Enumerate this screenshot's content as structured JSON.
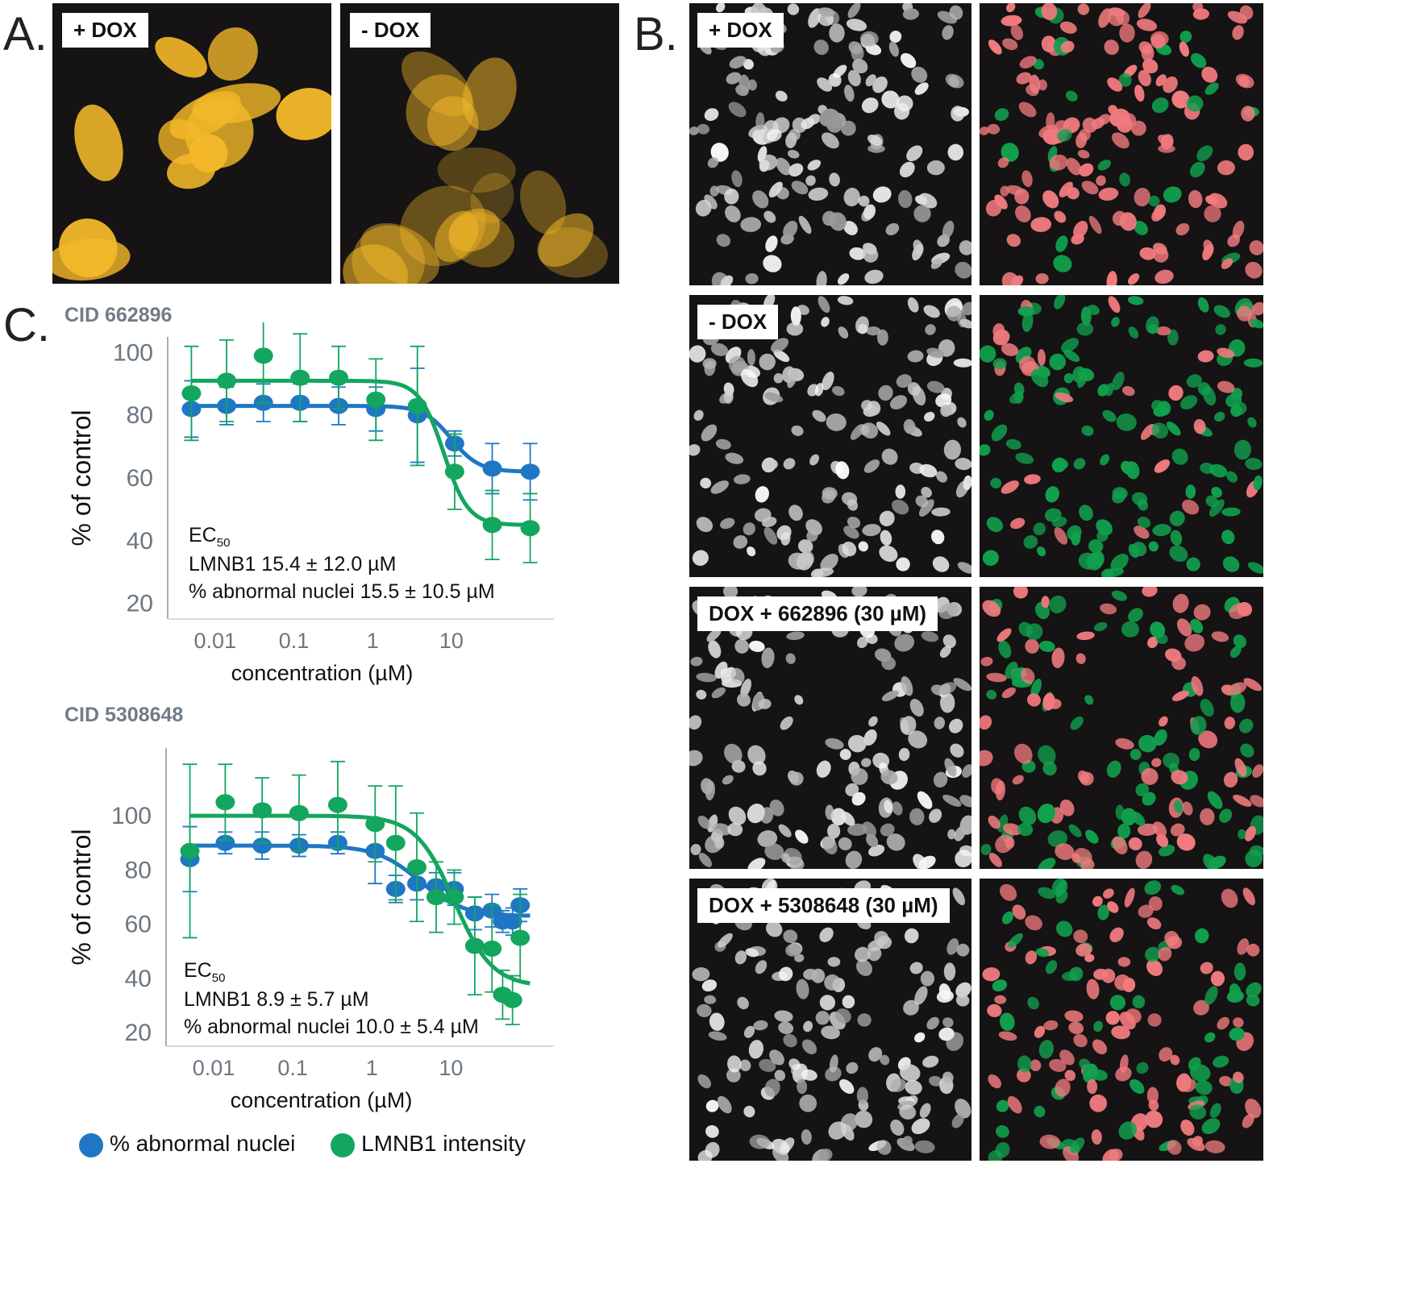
{
  "panels": {
    "a": {
      "letter": "A.",
      "images": [
        {
          "label": "+ DOX",
          "condition": "with doxycycline",
          "brightness": "bright"
        },
        {
          "label": "- DOX",
          "condition": "without doxycycline",
          "brightness": "dim"
        }
      ]
    },
    "b": {
      "letter": "B.",
      "rows": [
        {
          "label": "+ DOX",
          "left_style": "grayscale",
          "red_fraction": 0.78
        },
        {
          "label": "- DOX",
          "left_style": "grayscale",
          "red_fraction": 0.25
        },
        {
          "label": "DOX + 662896 (30 µM)",
          "left_style": "grayscale",
          "red_fraction": 0.5
        },
        {
          "label": "DOX + 5308648 (30 µM)",
          "left_style": "grayscale",
          "red_fraction": 0.55
        }
      ]
    },
    "c": {
      "letter": "C."
    }
  },
  "legend": {
    "items": [
      {
        "label": "% abnormal nuclei",
        "color": "#1f77c4"
      },
      {
        "label": "LMNB1 intensity",
        "color": "#13a65e"
      }
    ]
  },
  "colors": {
    "abnormal_nuclei": "#1f77c4",
    "lmnb1": "#13a65e",
    "axis_text": "#6b7680",
    "micro_yellow": "#f3b829",
    "micro_red": "#f07a7e",
    "micro_green": "#11a04e"
  },
  "chart_data": [
    {
      "type": "scatter",
      "title": "CID 662896",
      "xlabel": "concentration (µM)",
      "ylabel": "% of control",
      "x_scale": "log",
      "xlim": [
        0.0025,
        200
      ],
      "ylim": [
        15,
        105
      ],
      "x_ticks": [
        0.01,
        0.1,
        1,
        10
      ],
      "x_tick_labels": [
        "0.01",
        "0.1",
        "1",
        "10"
      ],
      "y_ticks": [
        20,
        40,
        60,
        80,
        100
      ],
      "y_tick_labels": [
        "20",
        "40",
        "60",
        "80",
        "100"
      ],
      "series": [
        {
          "name": "% abnormal nuclei",
          "color": "#1f77c4",
          "x": [
            0.005,
            0.014,
            0.041,
            0.12,
            0.37,
            1.1,
            3.7,
            11,
            33,
            100
          ],
          "y": [
            82,
            83,
            84,
            84,
            83,
            82,
            80,
            71,
            63,
            62
          ],
          "err": [
            9,
            6,
            6,
            6,
            6,
            7,
            15,
            4,
            8,
            9
          ],
          "fit": {
            "bottom": 62,
            "top": 83,
            "ec50": 10,
            "hill": 2.5
          }
        },
        {
          "name": "LMNB1 intensity",
          "color": "#13a65e",
          "x": [
            0.005,
            0.014,
            0.041,
            0.12,
            0.37,
            1.1,
            3.7,
            11,
            33,
            100
          ],
          "y": [
            87,
            91,
            99,
            92,
            92,
            85,
            83,
            62,
            45,
            44
          ],
          "err": [
            15,
            13,
            15,
            14,
            10,
            13,
            19,
            12,
            11,
            11
          ],
          "fit": {
            "bottom": 45,
            "top": 91,
            "ec50": 8,
            "hill": 2.8
          }
        }
      ],
      "annotation": {
        "ec50_label": "EC",
        "ec50_sub": "50",
        "lines": [
          "LMNB1 15.4  ± 12.0 µM",
          "% abnormal nuclei  15.5 ± 10.5 µM"
        ]
      }
    },
    {
      "type": "scatter",
      "title": "CID 5308648",
      "xlabel": "concentration (µM)",
      "ylabel": "% of control",
      "x_scale": "log",
      "xlim": [
        0.0025,
        200
      ],
      "ylim": [
        15,
        125
      ],
      "x_ticks": [
        0.01,
        0.1,
        1,
        10
      ],
      "x_tick_labels": [
        "0.01",
        "0.1",
        "1",
        "10"
      ],
      "y_ticks": [
        20,
        40,
        60,
        80,
        100
      ],
      "y_tick_labels": [
        "20",
        "40",
        "60",
        "80",
        "100"
      ],
      "series": [
        {
          "name": "% abnormal nuclei",
          "color": "#1f77c4",
          "x": [
            0.005,
            0.014,
            0.041,
            0.12,
            0.37,
            1.1,
            2.0,
            3.7,
            6.5,
            11,
            20,
            33,
            45,
            60,
            75
          ],
          "y": [
            84,
            90,
            89,
            89,
            90,
            87,
            73,
            75,
            74,
            73,
            64,
            65,
            61,
            61,
            67
          ],
          "err": [
            12,
            4,
            5,
            4,
            4,
            12,
            5,
            6,
            5,
            6,
            6,
            6,
            4,
            5,
            6
          ],
          "fit": {
            "bottom": 63,
            "top": 89,
            "ec50": 4,
            "hill": 1.6
          }
        },
        {
          "name": "LMNB1 intensity",
          "color": "#13a65e",
          "x": [
            0.005,
            0.014,
            0.041,
            0.12,
            0.37,
            1.1,
            2.0,
            3.7,
            6.5,
            11,
            20,
            33,
            45,
            60,
            75
          ],
          "y": [
            87,
            105,
            102,
            101,
            104,
            97,
            90,
            81,
            70,
            70,
            52,
            51,
            34,
            32,
            55
          ],
          "err": [
            32,
            14,
            12,
            14,
            16,
            14,
            21,
            20,
            13,
            10,
            18,
            16,
            9,
            9,
            16
          ],
          "fit": {
            "bottom": 37,
            "top": 100,
            "ec50": 11,
            "hill": 1.8
          }
        }
      ],
      "annotation": {
        "ec50_label": "EC",
        "ec50_sub": "50",
        "lines": [
          "LMNB1 8.9  ± 5.7 µM",
          "% abnormal nuclei  10.0 ± 5.4 µM"
        ]
      }
    }
  ]
}
